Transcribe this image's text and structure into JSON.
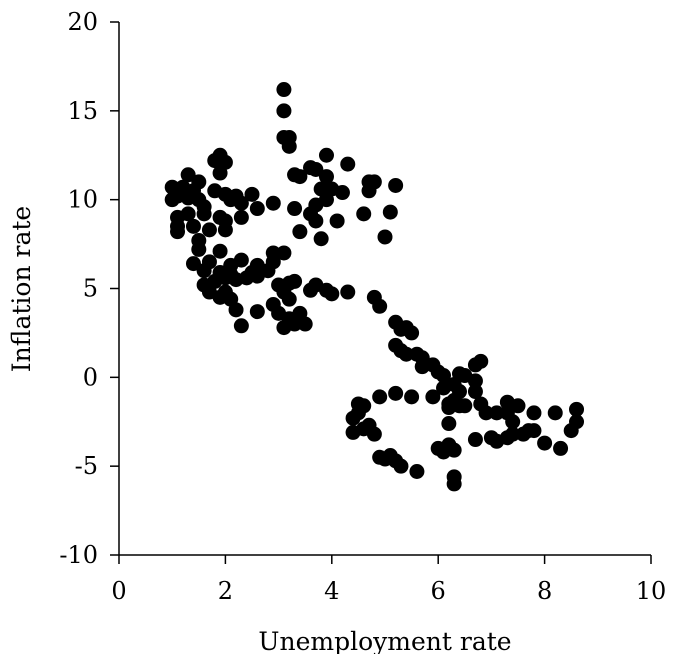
{
  "chart_data": {
    "type": "scatter",
    "title": "",
    "xlabel": "Unemployment rate",
    "ylabel": "Inflation rate",
    "xlim": [
      0,
      10
    ],
    "ylim": [
      -10,
      20
    ],
    "xticks": [
      "0",
      "2",
      "4",
      "6",
      "8",
      "10"
    ],
    "yticks": [
      "-10",
      "-5",
      "0",
      "5",
      "10",
      "15",
      "20"
    ],
    "grid": false,
    "legend": "none",
    "marker_color": "#000000",
    "points": [
      [
        3.1,
        16.2
      ],
      [
        3.1,
        15.0
      ],
      [
        3.1,
        13.5
      ],
      [
        3.2,
        13.5
      ],
      [
        3.2,
        13.0
      ],
      [
        1.9,
        12.5
      ],
      [
        2.0,
        12.1
      ],
      [
        1.8,
        12.2
      ],
      [
        3.9,
        12.5
      ],
      [
        4.3,
        12.0
      ],
      [
        3.6,
        11.8
      ],
      [
        3.7,
        11.7
      ],
      [
        1.3,
        11.4
      ],
      [
        1.5,
        11.0
      ],
      [
        1.9,
        11.5
      ],
      [
        3.3,
        11.4
      ],
      [
        3.4,
        11.3
      ],
      [
        3.9,
        11.3
      ],
      [
        4.7,
        11.0
      ],
      [
        4.8,
        11.0
      ],
      [
        5.2,
        10.8
      ],
      [
        1.0,
        10.7
      ],
      [
        1.2,
        10.7
      ],
      [
        1.4,
        10.5
      ],
      [
        1.8,
        10.5
      ],
      [
        2.0,
        10.3
      ],
      [
        2.2,
        10.2
      ],
      [
        2.5,
        10.3
      ],
      [
        3.8,
        10.6
      ],
      [
        4.0,
        10.6
      ],
      [
        4.2,
        10.4
      ],
      [
        4.7,
        10.5
      ],
      [
        1.0,
        10.0
      ],
      [
        1.1,
        10.2
      ],
      [
        1.3,
        10.1
      ],
      [
        1.5,
        10.0
      ],
      [
        1.6,
        9.6
      ],
      [
        2.1,
        10.0
      ],
      [
        2.3,
        9.8
      ],
      [
        2.6,
        9.5
      ],
      [
        2.9,
        9.8
      ],
      [
        3.3,
        9.5
      ],
      [
        3.7,
        9.7
      ],
      [
        3.9,
        10.0
      ],
      [
        3.6,
        9.2
      ],
      [
        3.7,
        8.8
      ],
      [
        4.1,
        8.8
      ],
      [
        4.6,
        9.2
      ],
      [
        5.1,
        9.3
      ],
      [
        1.1,
        9.0
      ],
      [
        1.3,
        9.2
      ],
      [
        1.6,
        9.2
      ],
      [
        1.9,
        9.0
      ],
      [
        2.0,
        8.8
      ],
      [
        2.3,
        9.0
      ],
      [
        1.1,
        8.5
      ],
      [
        1.4,
        8.5
      ],
      [
        1.7,
        8.3
      ],
      [
        2.0,
        8.3
      ],
      [
        1.1,
        8.2
      ],
      [
        3.4,
        8.2
      ],
      [
        3.8,
        7.8
      ],
      [
        5.0,
        7.9
      ],
      [
        1.5,
        7.7
      ],
      [
        1.5,
        7.2
      ],
      [
        1.9,
        7.1
      ],
      [
        2.9,
        7.0
      ],
      [
        3.1,
        7.0
      ],
      [
        1.4,
        6.4
      ],
      [
        1.7,
        6.5
      ],
      [
        2.1,
        6.3
      ],
      [
        2.3,
        6.6
      ],
      [
        2.6,
        6.3
      ],
      [
        2.9,
        6.5
      ],
      [
        1.6,
        6.0
      ],
      [
        1.9,
        5.9
      ],
      [
        2.1,
        5.8
      ],
      [
        2.5,
        5.9
      ],
      [
        2.8,
        6.0
      ],
      [
        1.6,
        5.2
      ],
      [
        1.8,
        5.4
      ],
      [
        2.0,
        5.6
      ],
      [
        2.2,
        5.5
      ],
      [
        2.4,
        5.6
      ],
      [
        2.6,
        5.7
      ],
      [
        3.0,
        5.2
      ],
      [
        3.2,
        5.3
      ],
      [
        3.3,
        5.4
      ],
      [
        3.7,
        5.2
      ],
      [
        3.9,
        4.9
      ],
      [
        4.3,
        4.8
      ],
      [
        1.7,
        4.8
      ],
      [
        1.9,
        4.5
      ],
      [
        2.0,
        4.8
      ],
      [
        2.1,
        4.4
      ],
      [
        3.1,
        4.8
      ],
      [
        3.2,
        4.4
      ],
      [
        3.6,
        4.9
      ],
      [
        4.0,
        4.7
      ],
      [
        4.8,
        4.5
      ],
      [
        2.2,
        3.8
      ],
      [
        2.6,
        3.7
      ],
      [
        2.9,
        4.1
      ],
      [
        3.0,
        3.6
      ],
      [
        3.2,
        3.3
      ],
      [
        3.4,
        3.6
      ],
      [
        4.9,
        4.0
      ],
      [
        2.3,
        2.9
      ],
      [
        3.1,
        2.8
      ],
      [
        3.3,
        3.0
      ],
      [
        3.5,
        3.0
      ],
      [
        5.2,
        3.1
      ],
      [
        5.3,
        2.7
      ],
      [
        5.4,
        2.8
      ],
      [
        5.5,
        2.5
      ],
      [
        5.2,
        1.8
      ],
      [
        5.3,
        1.5
      ],
      [
        5.4,
        1.3
      ],
      [
        5.6,
        1.3
      ],
      [
        5.7,
        1.1
      ],
      [
        5.7,
        0.6
      ],
      [
        5.9,
        0.7
      ],
      [
        6.0,
        0.3
      ],
      [
        6.1,
        0.1
      ],
      [
        6.7,
        0.7
      ],
      [
        6.8,
        0.9
      ],
      [
        6.4,
        0.2
      ],
      [
        6.5,
        0.1
      ],
      [
        6.1,
        -0.6
      ],
      [
        6.3,
        -0.4
      ],
      [
        6.4,
        -0.8
      ],
      [
        6.7,
        -0.2
      ],
      [
        6.7,
        -0.8
      ],
      [
        4.9,
        -1.1
      ],
      [
        5.2,
        -0.9
      ],
      [
        5.5,
        -1.1
      ],
      [
        5.9,
        -1.1
      ],
      [
        6.2,
        -1.5
      ],
      [
        6.3,
        -1.3
      ],
      [
        6.5,
        -1.6
      ],
      [
        6.8,
        -1.5
      ],
      [
        6.9,
        -2.0
      ],
      [
        4.5,
        -1.5
      ],
      [
        4.6,
        -1.6
      ],
      [
        4.4,
        -2.3
      ],
      [
        4.5,
        -2.0
      ],
      [
        6.2,
        -1.7
      ],
      [
        6.4,
        -1.6
      ],
      [
        7.1,
        -2.0
      ],
      [
        7.3,
        -1.4
      ],
      [
        7.3,
        -2.0
      ],
      [
        7.5,
        -1.6
      ],
      [
        7.8,
        -2.0
      ],
      [
        8.2,
        -2.0
      ],
      [
        8.6,
        -1.8
      ],
      [
        4.7,
        -2.7
      ],
      [
        6.2,
        -2.6
      ],
      [
        7.4,
        -2.5
      ],
      [
        8.6,
        -2.5
      ],
      [
        4.4,
        -3.1
      ],
      [
        4.6,
        -2.9
      ],
      [
        4.8,
        -3.2
      ],
      [
        6.7,
        -3.5
      ],
      [
        7.0,
        -3.4
      ],
      [
        7.1,
        -3.6
      ],
      [
        7.3,
        -3.4
      ],
      [
        7.4,
        -3.2
      ],
      [
        7.6,
        -3.2
      ],
      [
        7.7,
        -3.0
      ],
      [
        7.8,
        -3.0
      ],
      [
        8.5,
        -3.0
      ],
      [
        8.0,
        -3.7
      ],
      [
        8.3,
        -4.0
      ],
      [
        6.0,
        -4.0
      ],
      [
        6.2,
        -3.8
      ],
      [
        6.3,
        -4.1
      ],
      [
        6.1,
        -4.2
      ],
      [
        4.9,
        -4.5
      ],
      [
        5.0,
        -4.6
      ],
      [
        5.1,
        -4.4
      ],
      [
        5.2,
        -4.7
      ],
      [
        5.3,
        -5.0
      ],
      [
        5.6,
        -5.3
      ],
      [
        6.3,
        -5.6
      ],
      [
        6.3,
        -6.0
      ]
    ]
  }
}
